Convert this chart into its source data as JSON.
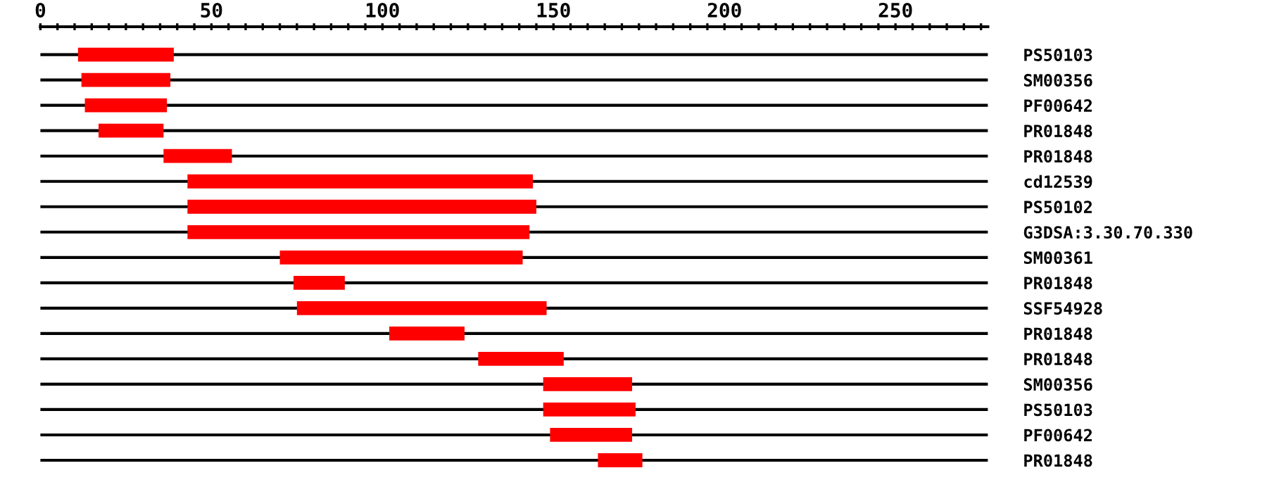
{
  "chart_data": {
    "type": "bar",
    "orientation": "horizontal",
    "color": "#ff0000",
    "categories": [
      "PS50103",
      "SM00356",
      "PF00642",
      "PR01848",
      "PR01848",
      "cd12539",
      "PS50102",
      "G3DSA:3.30.70.330",
      "SM00361",
      "PR01848",
      "SSF54928",
      "PR01848",
      "PR01848",
      "SM00356",
      "PS50103",
      "PF00642",
      "PR01848"
    ],
    "base": [
      11,
      12,
      13,
      17,
      36,
      43,
      43,
      43,
      70,
      74,
      75,
      102,
      128,
      147,
      147,
      149,
      163
    ],
    "values": [
      28,
      26,
      24,
      19,
      20,
      101,
      102,
      100,
      71,
      15,
      73,
      22,
      25,
      26,
      27,
      24,
      13
    ],
    "xlim": [
      0,
      277
    ],
    "xticks": [
      0,
      {
        "value": 5,
        "label": null
      },
      {
        "value": 10,
        "label": null
      },
      {
        "value": 15,
        "label": null
      },
      {
        "value": 20,
        "label": null
      },
      {
        "value": 25,
        "label": null
      },
      {
        "value": 30,
        "label": null
      },
      {
        "value": 35,
        "label": null
      },
      {
        "value": 40,
        "label": null
      },
      {
        "value": 45,
        "label": null
      },
      50,
      {
        "value": 55,
        "label": null
      },
      {
        "value": 60,
        "label": null
      },
      {
        "value": 65,
        "label": null
      },
      {
        "value": 70,
        "label": null
      },
      {
        "value": 75,
        "label": null
      },
      {
        "value": 80,
        "label": null
      },
      {
        "value": 85,
        "label": null
      },
      {
        "value": 90,
        "label": null
      },
      {
        "value": 95,
        "label": null
      },
      100,
      {
        "value": 105,
        "label": null
      },
      {
        "value": 110,
        "label": null
      },
      {
        "value": 115,
        "label": null
      },
      {
        "value": 120,
        "label": null
      },
      {
        "value": 125,
        "label": null
      },
      {
        "value": 130,
        "label": null
      },
      {
        "value": 135,
        "label": null
      },
      {
        "value": 140,
        "label": null
      },
      {
        "value": 145,
        "label": null
      },
      150,
      {
        "value": 155,
        "label": null
      },
      {
        "value": 160,
        "label": null
      },
      {
        "value": 165,
        "label": null
      },
      {
        "value": 170,
        "label": null
      },
      {
        "value": 175,
        "label": null
      },
      {
        "value": 180,
        "label": null
      },
      {
        "value": 185,
        "label": null
      },
      {
        "value": 190,
        "label": null
      },
      {
        "value": 195,
        "label": null
      },
      200,
      {
        "value": 205,
        "label": null
      },
      {
        "value": 210,
        "label": null
      },
      {
        "value": 215,
        "label": null
      },
      {
        "value": 220,
        "label": null
      },
      {
        "value": 225,
        "label": null
      },
      {
        "value": 230,
        "label": null
      },
      {
        "value": 235,
        "label": null
      },
      {
        "value": 240,
        "label": null
      },
      {
        "value": 245,
        "label": null
      },
      250,
      {
        "value": 255,
        "label": null
      },
      {
        "value": 260,
        "label": null
      },
      {
        "value": 265,
        "label": null
      },
      {
        "value": 270,
        "label": null
      },
      {
        "value": 275,
        "label": null
      }
    ],
    "grid": "y"
  }
}
